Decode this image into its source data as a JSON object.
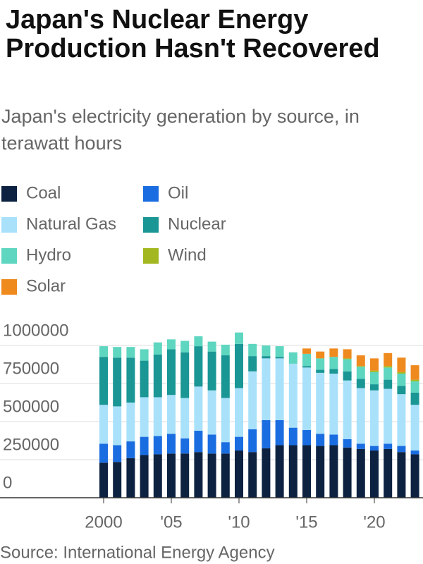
{
  "chart_data": {
    "type": "stacked_bar",
    "title": "Japan's Nuclear Energy Production Hasn't Recovered",
    "subtitle": "Japan's electricity generation by source, in terawatt hours",
    "source": "Source: International Energy Agency",
    "categories": [
      "2000",
      null,
      null,
      null,
      null,
      "'05",
      null,
      null,
      null,
      null,
      "'10",
      null,
      null,
      null,
      null,
      "'15",
      null,
      null,
      null,
      null,
      "'20",
      null,
      null,
      null
    ],
    "ylim": [
      0,
      1000000
    ],
    "yticks": [
      0,
      250000,
      500000,
      750000,
      1000000
    ],
    "grid": true,
    "series": [
      {
        "name": "Coal",
        "color": "#0d2240",
        "values": [
          230000,
          235000,
          260000,
          280000,
          285000,
          290000,
          290000,
          300000,
          290000,
          290000,
          310000,
          300000,
          325000,
          345000,
          345000,
          345000,
          340000,
          345000,
          330000,
          320000,
          310000,
          320000,
          300000,
          285000
        ]
      },
      {
        "name": "Oil",
        "color": "#1a6de0",
        "values": [
          125000,
          110000,
          110000,
          120000,
          120000,
          130000,
          100000,
          140000,
          125000,
          75000,
          90000,
          150000,
          185000,
          165000,
          115000,
          100000,
          80000,
          70000,
          55000,
          35000,
          30000,
          35000,
          40000,
          25000
        ]
      },
      {
        "name": "Natural Gas",
        "color": "#a9e1fb",
        "values": [
          255000,
          255000,
          255000,
          260000,
          255000,
          255000,
          265000,
          290000,
          290000,
          290000,
          320000,
          380000,
          405000,
          405000,
          420000,
          410000,
          400000,
          400000,
          385000,
          365000,
          365000,
          360000,
          340000,
          300000
        ]
      },
      {
        "name": "Nuclear",
        "color": "#1a9694",
        "values": [
          315000,
          320000,
          295000,
          240000,
          280000,
          300000,
          300000,
          265000,
          255000,
          280000,
          290000,
          100000,
          15000,
          10000,
          0,
          10000,
          20000,
          30000,
          60000,
          60000,
          40000,
          60000,
          55000,
          80000
        ]
      },
      {
        "name": "Hydro",
        "color": "#5ed6c0",
        "values": [
          70000,
          70000,
          70000,
          75000,
          80000,
          65000,
          75000,
          65000,
          65000,
          70000,
          75000,
          80000,
          70000,
          70000,
          75000,
          80000,
          75000,
          80000,
          80000,
          80000,
          80000,
          80000,
          80000,
          75000
        ]
      },
      {
        "name": "Wind",
        "color": "#a3b820",
        "values": [
          0,
          0,
          0,
          0,
          0,
          0,
          0,
          0,
          0,
          0,
          0,
          0,
          0,
          0,
          0,
          0,
          0,
          0,
          5000,
          5000,
          10000,
          10000,
          10000,
          10000
        ]
      },
      {
        "name": "Solar",
        "color": "#ef8a1f",
        "values": [
          0,
          0,
          0,
          0,
          0,
          0,
          0,
          0,
          0,
          0,
          0,
          0,
          0,
          0,
          0,
          35000,
          45000,
          55000,
          60000,
          70000,
          80000,
          85000,
          95000,
          95000
        ]
      }
    ]
  }
}
